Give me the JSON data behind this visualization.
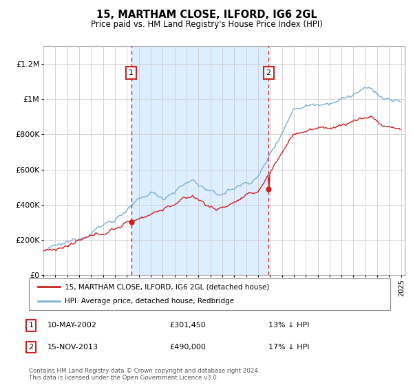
{
  "title": "15, MARTHAM CLOSE, ILFORD, IG6 2GL",
  "subtitle": "Price paid vs. HM Land Registry's House Price Index (HPI)",
  "sale1_date": "10-MAY-2002",
  "sale1_price": 301450,
  "sale1_label": "13% ↓ HPI",
  "sale1_year": 2002.37,
  "sale2_date": "15-NOV-2013",
  "sale2_price": 490000,
  "sale2_label": "17% ↓ HPI",
  "sale2_year": 2013.88,
  "red_line_label": "15, MARTHAM CLOSE, ILFORD, IG6 2GL (detached house)",
  "blue_line_label": "HPI: Average price, detached house, Redbridge",
  "footer": "Contains HM Land Registry data © Crown copyright and database right 2024.\nThis data is licensed under the Open Government Licence v3.0.",
  "red_color": "#cc2222",
  "blue_color": "#7bafd4",
  "shade_color": "#ddeeff",
  "background_color": "#ffffff",
  "grid_color": "#cccccc",
  "dashed_color": "#cc2222",
  "ylim_max": 1300000,
  "ylim_min": 0,
  "start_year": 1995,
  "end_year": 2025
}
